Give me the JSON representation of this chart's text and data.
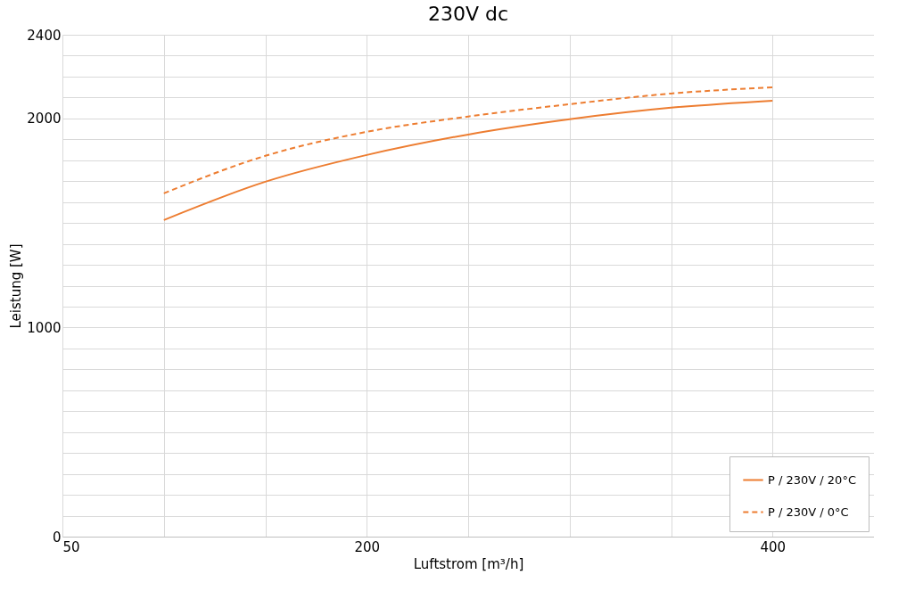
{
  "chart_data": {
    "type": "line",
    "title": "230V dc",
    "xlabel": "Luftstrom [m³/h]",
    "ylabel": "Leistung [W]",
    "x": [
      100,
      150,
      200,
      250,
      300,
      350,
      400
    ],
    "series": [
      {
        "name": "P / 230V / 20°C",
        "color": "#ed7d31",
        "line_style": "solid",
        "values": [
          1514,
          1697,
          1825,
          1923,
          1996,
          2051,
          2085
        ]
      },
      {
        "name": "P / 230V / 0°C",
        "color": "#ed7d31",
        "line_style": "dashed",
        "values": [
          1642,
          1821,
          1936,
          2009,
          2068,
          2119,
          2149
        ]
      }
    ],
    "xlim": [
      50,
      450
    ],
    "xticks": [
      50,
      {
        "value": 100,
        "label": null
      },
      {
        "value": 150,
        "label": null
      },
      200,
      {
        "value": 250,
        "label": null
      },
      {
        "value": 300,
        "label": null
      },
      {
        "value": 350,
        "label": null
      },
      400
    ],
    "ylim": [
      0,
      2400
    ],
    "yticks": [
      0,
      {
        "value": 100,
        "label": null
      },
      {
        "value": 200,
        "label": null
      },
      {
        "value": 300,
        "label": null
      },
      {
        "value": 400,
        "label": null
      },
      {
        "value": 500,
        "label": null
      },
      {
        "value": 600,
        "label": null
      },
      {
        "value": 700,
        "label": null
      },
      {
        "value": 800,
        "label": null
      },
      {
        "value": 900,
        "label": null
      },
      1000,
      {
        "value": 1100,
        "label": null
      },
      {
        "value": 1200,
        "label": null
      },
      {
        "value": 1300,
        "label": null
      },
      {
        "value": 1400,
        "label": null
      },
      {
        "value": 1500,
        "label": null
      },
      {
        "value": 1600,
        "label": null
      },
      {
        "value": 1700,
        "label": null
      },
      {
        "value": 1800,
        "label": null
      },
      {
        "value": 1900,
        "label": null
      },
      2000,
      {
        "value": 2100,
        "label": null
      },
      {
        "value": 2200,
        "label": null
      },
      {
        "value": 2300,
        "label": null
      },
      2400
    ],
    "grid": true,
    "legend": "bottom right",
    "marker": "none"
  }
}
